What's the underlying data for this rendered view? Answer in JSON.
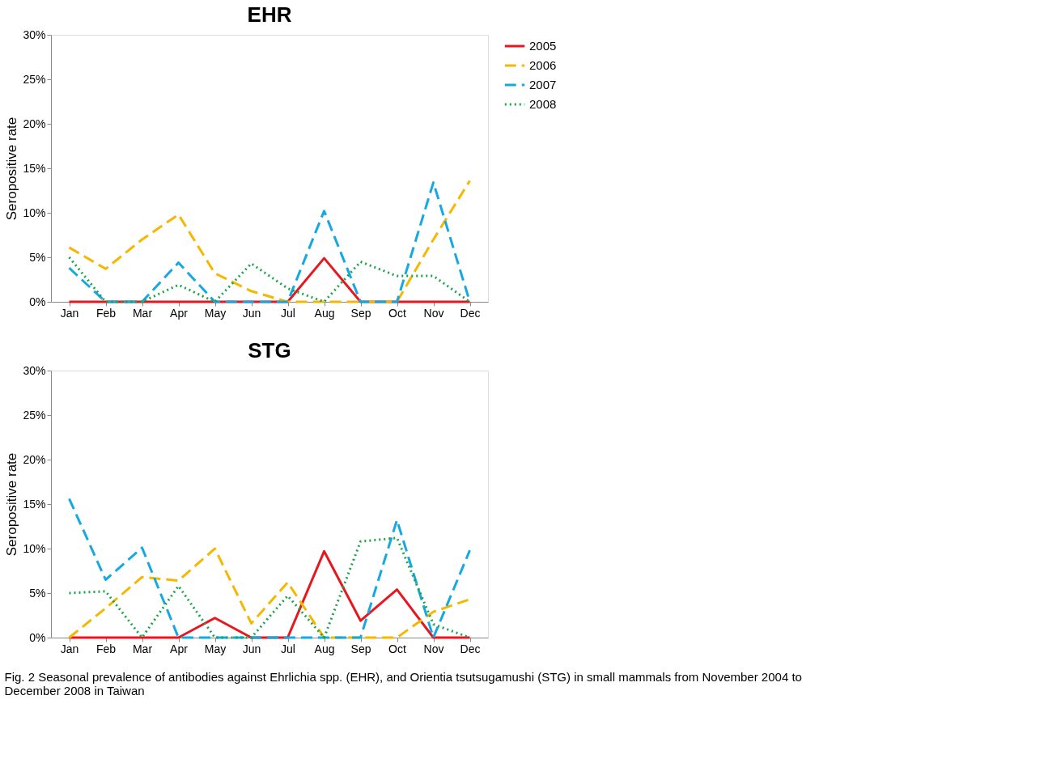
{
  "chart_data": [
    {
      "type": "line",
      "title": "EHR",
      "ylabel": "Seropositive rate",
      "categories": [
        "Jan",
        "Feb",
        "Mar",
        "Apr",
        "May",
        "Jun",
        "Jul",
        "Aug",
        "Sep",
        "Oct",
        "Nov",
        "Dec"
      ],
      "series": [
        {
          "name": "2005",
          "color": "#e8171f",
          "line_style": "solid",
          "values": [
            0,
            0,
            0,
            0,
            0,
            0,
            0,
            4.9,
            0,
            0,
            0,
            0
          ]
        },
        {
          "name": "2006",
          "color": "#f5b800",
          "line_style": "dashed",
          "values": [
            6.1,
            3.7,
            7,
            9.8,
            3.2,
            1.2,
            0,
            0,
            0,
            0,
            7,
            13.6
          ]
        },
        {
          "name": "2007",
          "color": "#16a9e1",
          "line_style": "dashed",
          "values": [
            3.8,
            0,
            0,
            4.4,
            0,
            0,
            0,
            10.2,
            0,
            0,
            13.4,
            0
          ]
        },
        {
          "name": "2008",
          "color": "#1ca34a",
          "line_style": "dotted",
          "values": [
            5,
            0,
            0,
            1.9,
            0,
            4.3,
            1.5,
            0,
            4.5,
            2.9,
            2.9,
            0
          ]
        }
      ],
      "ylim": [
        0,
        30
      ],
      "yticks": [
        {
          "value": 0,
          "label": "0%"
        },
        {
          "value": 5,
          "label": "5%"
        },
        {
          "value": 10,
          "label": "10%"
        },
        {
          "value": 15,
          "label": "15%"
        },
        {
          "value": 20,
          "label": "20%"
        },
        {
          "value": 25,
          "label": "25%"
        },
        {
          "value": 30,
          "label": "30%"
        }
      ],
      "grid": false,
      "legend": "right"
    },
    {
      "type": "line",
      "title": "STG",
      "ylabel": "Seropositive rate",
      "categories": [
        "Jan",
        "Feb",
        "Mar",
        "Apr",
        "May",
        "Jun",
        "Jul",
        "Aug",
        "Sep",
        "Oct",
        "Nov",
        "Dec"
      ],
      "series": [
        {
          "name": "2005",
          "color": "#e8171f",
          "line_style": "solid",
          "values": [
            0,
            0,
            0,
            0,
            2.2,
            0,
            0,
            9.7,
            1.9,
            5.4,
            0,
            0
          ]
        },
        {
          "name": "2006",
          "color": "#f5b800",
          "line_style": "dashed",
          "values": [
            0,
            3.3,
            6.8,
            6.4,
            10,
            1.6,
            6.2,
            0,
            0,
            0,
            2.9,
            4.3
          ]
        },
        {
          "name": "2007",
          "color": "#16a9e1",
          "line_style": "dashed",
          "values": [
            15.6,
            6.5,
            10.1,
            0,
            0,
            0,
            0,
            0,
            0,
            13.2,
            0,
            9.8
          ]
        },
        {
          "name": "2008",
          "color": "#1ca34a",
          "line_style": "dotted",
          "values": [
            5,
            5.2,
            0,
            5.8,
            0,
            0,
            4.7,
            0,
            10.8,
            11.2,
            1.5,
            0
          ]
        }
      ],
      "ylim": [
        0,
        30
      ],
      "yticks": [
        {
          "value": 0,
          "label": "0%"
        },
        {
          "value": 5,
          "label": "5%"
        },
        {
          "value": 10,
          "label": "10%"
        },
        {
          "value": 15,
          "label": "15%"
        },
        {
          "value": 20,
          "label": "20%"
        },
        {
          "value": 25,
          "label": "25%"
        },
        {
          "value": 30,
          "label": "30%"
        }
      ],
      "grid": false,
      "legend": "right",
      "annotations": [
        "Fig. 2 Seasonal prevalence of antibodies against Ehrlichia spp. (EHR), and Orientia tsutsugamushi (STG) in small mammals from November 2004 to December 2008 in Taiwan"
      ]
    }
  ]
}
